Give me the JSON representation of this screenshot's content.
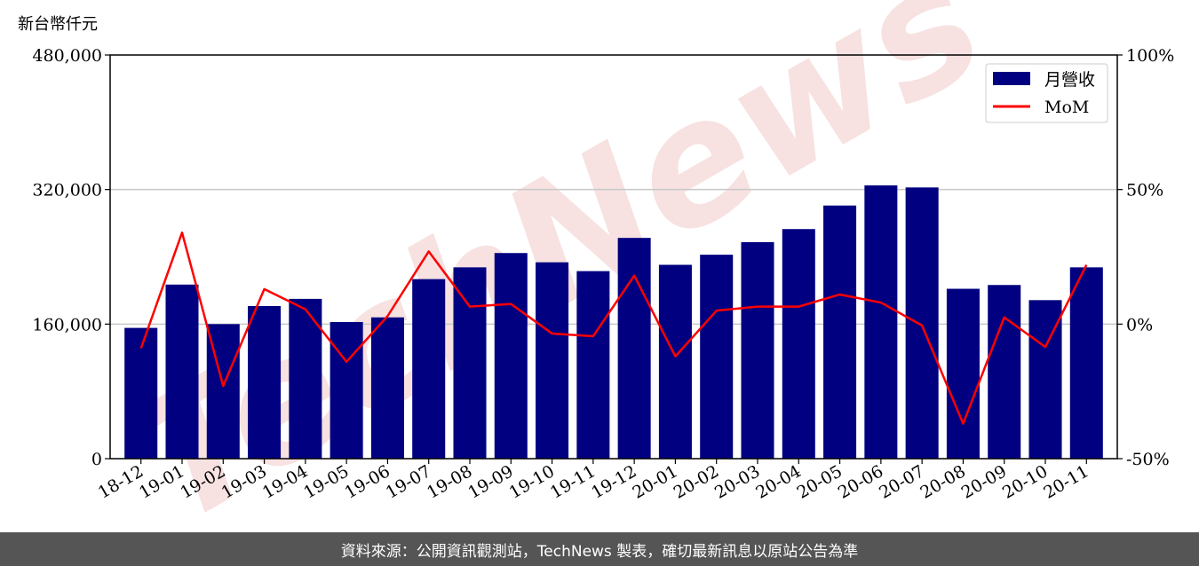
{
  "chart_data": {
    "type": "bar",
    "y_unit_label": "新台幣仟元",
    "categories": [
      "18-12",
      "19-01",
      "19-02",
      "19-03",
      "19-04",
      "19-05",
      "19-06",
      "19-07",
      "19-08",
      "19-09",
      "19-10",
      "19-11",
      "19-12",
      "20-01",
      "20-02",
      "20-03",
      "20-04",
      "20-05",
      "20-06",
      "20-07",
      "20-08",
      "20-09",
      "20-10",
      "20-11"
    ],
    "series": [
      {
        "name": "月營收",
        "axis": "left",
        "values": [
          155500,
          207000,
          160000,
          181500,
          190000,
          162500,
          168000,
          213500,
          227500,
          244500,
          233500,
          223000,
          262500,
          230500,
          242500,
          257500,
          273000,
          301000,
          325000,
          322500,
          202000,
          206500,
          188500,
          227500
        ],
        "color": "#000080"
      },
      {
        "name": "MoM",
        "axis": "right",
        "type": "line",
        "values": [
          -9,
          34,
          -23,
          13,
          5.5,
          -14,
          3,
          27,
          6.5,
          7.5,
          -3.5,
          -4.5,
          18,
          -12,
          5,
          6.5,
          6.5,
          11,
          8,
          -0.5,
          -37,
          2.5,
          -8.5,
          22
        ],
        "color": "#ff0000"
      }
    ],
    "ylim_left": [
      0,
      480000
    ],
    "yticks_left": [
      "0",
      "160,000",
      "320,000",
      "480,000"
    ],
    "ylim_right": [
      -50,
      100
    ],
    "yticks_right": [
      "-50%",
      "0%",
      "50%",
      "100%"
    ],
    "grid": "horizontal",
    "legend_position": "top-right"
  },
  "watermark": "TechNews",
  "footer": {
    "source_text": "資料來源：公開資訊觀測站，TechNews 製表，確切最新訊息以原站公告為準"
  }
}
